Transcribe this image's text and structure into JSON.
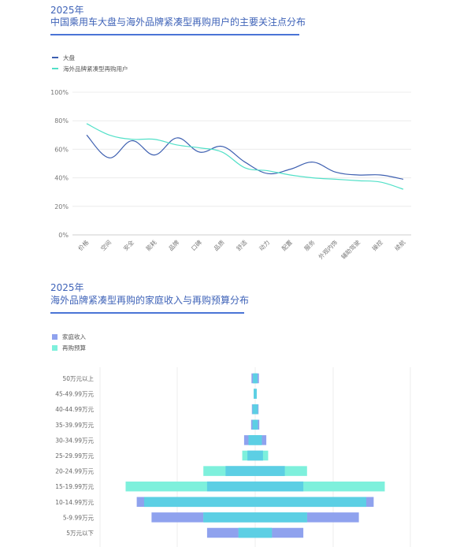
{
  "line_section": {
    "year": "2025年",
    "title": "中国乘用车大盘与海外品牌紧凑型再购用户的主要关注点分布"
  },
  "bar_section": {
    "year": "2025年",
    "title": "海外品牌紧凑型再购的家庭收入与再购预算分布"
  },
  "colors": {
    "title_blue": "#3f63b8",
    "series_market": "#3d5fb0",
    "series_overseas": "#52e0c8",
    "income": "#8fa2ee",
    "budget": "#7ef0dc",
    "overlap": "#5ccfe4"
  },
  "chart_data": [
    {
      "type": "line",
      "categories": [
        "价格",
        "空间",
        "安全",
        "能耗",
        "品牌",
        "口碑",
        "品质",
        "舒适",
        "动力",
        "配置",
        "服务",
        "外观内饰",
        "辅助驾驶",
        "操控",
        "续航"
      ],
      "series": [
        {
          "name": "大盘",
          "values": [
            70,
            54,
            66,
            56,
            68,
            58,
            62,
            51,
            43,
            46,
            51,
            44,
            42,
            42,
            39
          ]
        },
        {
          "name": "海外品牌紧凑型再购用户",
          "values": [
            78,
            70,
            67,
            67,
            63,
            61,
            58,
            47,
            45,
            42,
            40,
            39,
            38,
            37,
            32
          ]
        }
      ],
      "y_ticks": [
        "0%",
        "20%",
        "40%",
        "60%",
        "80%",
        "100%"
      ],
      "ylim": [
        0,
        100
      ],
      "legend_position": "top-left",
      "grid": true
    },
    {
      "type": "bar",
      "orientation": "horizontal-butterfly",
      "categories": [
        "50万元以上",
        "45-49.99万元",
        "40-44.99万元",
        "35-39.99万元",
        "30-34.99万元",
        "25-29.99万元",
        "20-24.99万元",
        "15-19.99万元",
        "10-14.99万元",
        "5-9.99万元",
        "5万元以下"
      ],
      "series": [
        {
          "name": "家庭收入",
          "values": [
            1.0,
            0.4,
            0.9,
            1.1,
            3.0,
            2.1,
            8.0,
            13.0,
            32.0,
            28.0,
            13.0
          ]
        },
        {
          "name": "再购预算",
          "values": [
            0.6,
            0.4,
            0.7,
            0.7,
            1.8,
            3.5,
            14.0,
            35.0,
            30.0,
            14.0,
            4.5
          ]
        }
      ],
      "legend_position": "top-left",
      "grid": true
    }
  ]
}
